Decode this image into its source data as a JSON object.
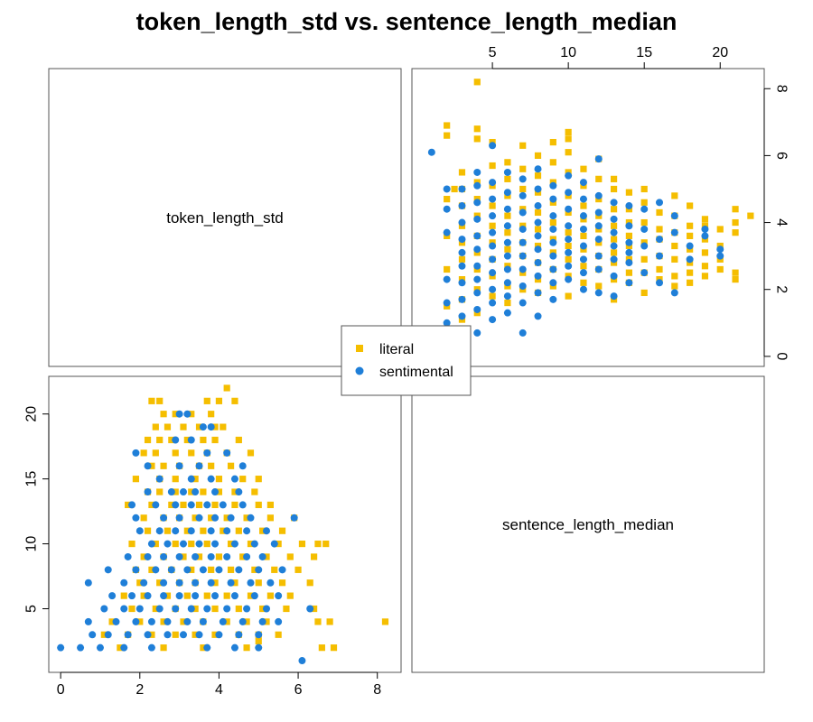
{
  "chart_data": {
    "type": "scatter",
    "title": "token_length_std vs. sentence_length_median",
    "variables": [
      "token_length_std",
      "sentence_length_median"
    ],
    "legend": {
      "position": "center",
      "entries": [
        "literal",
        "sentimental"
      ]
    },
    "series": [
      {
        "name": "literal",
        "color": "#F5BE00",
        "marker": "square",
        "points": [
          [
            2.3,
            21
          ],
          [
            2.5,
            21
          ],
          [
            3.7,
            21
          ],
          [
            4.0,
            21
          ],
          [
            4.2,
            22
          ],
          [
            4.4,
            21
          ],
          [
            2.6,
            20
          ],
          [
            2.9,
            20
          ],
          [
            3.3,
            20
          ],
          [
            3.8,
            20
          ],
          [
            2.4,
            19
          ],
          [
            2.7,
            19
          ],
          [
            3.1,
            19
          ],
          [
            3.5,
            19
          ],
          [
            3.9,
            19
          ],
          [
            4.1,
            19
          ],
          [
            2.2,
            18
          ],
          [
            2.5,
            18
          ],
          [
            2.8,
            18
          ],
          [
            3.2,
            18
          ],
          [
            3.6,
            18
          ],
          [
            3.9,
            18
          ],
          [
            4.5,
            18
          ],
          [
            2.1,
            17
          ],
          [
            2.4,
            17
          ],
          [
            2.9,
            17
          ],
          [
            3.3,
            17
          ],
          [
            3.7,
            17
          ],
          [
            4.2,
            17
          ],
          [
            4.8,
            17
          ],
          [
            2.3,
            16
          ],
          [
            2.6,
            16
          ],
          [
            3.0,
            16
          ],
          [
            3.5,
            16
          ],
          [
            3.8,
            16
          ],
          [
            4.3,
            16
          ],
          [
            1.9,
            15
          ],
          [
            2.5,
            15
          ],
          [
            2.9,
            15
          ],
          [
            3.4,
            15
          ],
          [
            4.0,
            15
          ],
          [
            4.6,
            15
          ],
          [
            5.0,
            15
          ],
          [
            2.2,
            14
          ],
          [
            2.5,
            14
          ],
          [
            2.9,
            14
          ],
          [
            3.3,
            14
          ],
          [
            3.6,
            14
          ],
          [
            4.0,
            14
          ],
          [
            4.4,
            14
          ],
          [
            4.9,
            14
          ],
          [
            1.7,
            13
          ],
          [
            2.3,
            13
          ],
          [
            2.8,
            13
          ],
          [
            3.1,
            13
          ],
          [
            3.5,
            13
          ],
          [
            3.9,
            13
          ],
          [
            4.4,
            13
          ],
          [
            5.0,
            13
          ],
          [
            5.3,
            13
          ],
          [
            2.1,
            12
          ],
          [
            2.6,
            12
          ],
          [
            3.0,
            12
          ],
          [
            3.4,
            12
          ],
          [
            3.8,
            12
          ],
          [
            4.2,
            12
          ],
          [
            4.7,
            12
          ],
          [
            5.3,
            12
          ],
          [
            5.9,
            12
          ],
          [
            2.2,
            11
          ],
          [
            2.7,
            11
          ],
          [
            3.2,
            11
          ],
          [
            3.6,
            11
          ],
          [
            4.1,
            11
          ],
          [
            4.5,
            11
          ],
          [
            5.1,
            11
          ],
          [
            5.6,
            11
          ],
          [
            1.8,
            10
          ],
          [
            2.4,
            10
          ],
          [
            2.9,
            10
          ],
          [
            3.3,
            10
          ],
          [
            3.7,
            10
          ],
          [
            4.3,
            10
          ],
          [
            4.8,
            10
          ],
          [
            5.5,
            10
          ],
          [
            6.1,
            10
          ],
          [
            6.5,
            10
          ],
          [
            6.7,
            10
          ],
          [
            2.1,
            9
          ],
          [
            2.6,
            9
          ],
          [
            3.1,
            9
          ],
          [
            3.5,
            9
          ],
          [
            4.0,
            9
          ],
          [
            4.6,
            9
          ],
          [
            5.2,
            9
          ],
          [
            5.8,
            9
          ],
          [
            6.4,
            9
          ],
          [
            1.9,
            8
          ],
          [
            2.3,
            8
          ],
          [
            2.8,
            8
          ],
          [
            3.3,
            8
          ],
          [
            3.8,
            8
          ],
          [
            4.3,
            8
          ],
          [
            4.9,
            8
          ],
          [
            5.4,
            8
          ],
          [
            6.0,
            8
          ],
          [
            2.0,
            7
          ],
          [
            2.5,
            7
          ],
          [
            3.0,
            7
          ],
          [
            3.4,
            7
          ],
          [
            3.9,
            7
          ],
          [
            4.4,
            7
          ],
          [
            5.0,
            7
          ],
          [
            5.6,
            7
          ],
          [
            6.3,
            7
          ],
          [
            1.6,
            6
          ],
          [
            2.1,
            6
          ],
          [
            2.7,
            6
          ],
          [
            3.2,
            6
          ],
          [
            3.7,
            6
          ],
          [
            4.2,
            6
          ],
          [
            4.8,
            6
          ],
          [
            5.3,
            6
          ],
          [
            5.8,
            6
          ],
          [
            1.8,
            5
          ],
          [
            2.4,
            5
          ],
          [
            2.9,
            5
          ],
          [
            3.4,
            5
          ],
          [
            3.9,
            5
          ],
          [
            4.5,
            5
          ],
          [
            5.1,
            5
          ],
          [
            5.7,
            5
          ],
          [
            6.4,
            5
          ],
          [
            1.3,
            4
          ],
          [
            2.0,
            4
          ],
          [
            2.6,
            4
          ],
          [
            3.1,
            4
          ],
          [
            3.6,
            4
          ],
          [
            4.2,
            4
          ],
          [
            4.7,
            4
          ],
          [
            5.2,
            4
          ],
          [
            6.5,
            4
          ],
          [
            6.8,
            4
          ],
          [
            8.2,
            4
          ],
          [
            1.1,
            3
          ],
          [
            1.7,
            3
          ],
          [
            2.3,
            3
          ],
          [
            2.9,
            3
          ],
          [
            3.4,
            3
          ],
          [
            3.9,
            3
          ],
          [
            4.5,
            3
          ],
          [
            5.0,
            3
          ],
          [
            5.5,
            3
          ],
          [
            1.5,
            2
          ],
          [
            2.6,
            2
          ],
          [
            3.6,
            2
          ],
          [
            4.7,
            2
          ],
          [
            5.0,
            2.5
          ],
          [
            6.6,
            2
          ],
          [
            6.9,
            2
          ]
        ]
      },
      {
        "name": "sentimental",
        "color": "#1F7FD8",
        "marker": "circle",
        "points": [
          [
            3.0,
            20
          ],
          [
            3.2,
            20
          ],
          [
            3.6,
            19
          ],
          [
            3.8,
            19
          ],
          [
            2.9,
            18
          ],
          [
            3.3,
            18
          ],
          [
            3.7,
            17
          ],
          [
            4.2,
            17
          ],
          [
            1.9,
            17
          ],
          [
            2.2,
            16
          ],
          [
            3.0,
            16
          ],
          [
            3.5,
            16
          ],
          [
            4.6,
            16
          ],
          [
            2.5,
            15
          ],
          [
            3.3,
            15
          ],
          [
            3.8,
            15
          ],
          [
            4.4,
            15
          ],
          [
            2.2,
            14
          ],
          [
            2.8,
            14
          ],
          [
            3.1,
            14
          ],
          [
            3.4,
            14
          ],
          [
            3.9,
            14
          ],
          [
            4.5,
            14
          ],
          [
            1.8,
            13
          ],
          [
            2.4,
            13
          ],
          [
            2.9,
            13
          ],
          [
            3.3,
            13
          ],
          [
            3.7,
            13
          ],
          [
            4.1,
            13
          ],
          [
            4.6,
            13
          ],
          [
            1.9,
            12
          ],
          [
            2.6,
            12
          ],
          [
            3.0,
            12
          ],
          [
            3.5,
            12
          ],
          [
            3.9,
            12
          ],
          [
            4.3,
            12
          ],
          [
            4.8,
            12
          ],
          [
            5.9,
            12
          ],
          [
            2.0,
            11
          ],
          [
            2.5,
            11
          ],
          [
            2.9,
            11
          ],
          [
            3.3,
            11
          ],
          [
            3.8,
            11
          ],
          [
            4.2,
            11
          ],
          [
            4.7,
            11
          ],
          [
            5.2,
            11
          ],
          [
            2.3,
            10
          ],
          [
            2.7,
            10
          ],
          [
            3.1,
            10
          ],
          [
            3.5,
            10
          ],
          [
            3.9,
            10
          ],
          [
            4.4,
            10
          ],
          [
            4.9,
            10
          ],
          [
            5.4,
            10
          ],
          [
            1.7,
            9
          ],
          [
            2.2,
            9
          ],
          [
            2.6,
            9
          ],
          [
            3.0,
            9
          ],
          [
            3.4,
            9
          ],
          [
            3.8,
            9
          ],
          [
            4.2,
            9
          ],
          [
            4.7,
            9
          ],
          [
            5.1,
            9
          ],
          [
            1.2,
            8
          ],
          [
            1.9,
            8
          ],
          [
            2.4,
            8
          ],
          [
            2.8,
            8
          ],
          [
            3.2,
            8
          ],
          [
            3.6,
            8
          ],
          [
            4.0,
            8
          ],
          [
            4.5,
            8
          ],
          [
            5.0,
            8
          ],
          [
            5.6,
            8
          ],
          [
            0.7,
            7
          ],
          [
            1.6,
            7
          ],
          [
            2.1,
            7
          ],
          [
            2.6,
            7
          ],
          [
            3.0,
            7
          ],
          [
            3.4,
            7
          ],
          [
            3.8,
            7
          ],
          [
            4.3,
            7
          ],
          [
            4.8,
            7
          ],
          [
            5.3,
            7
          ],
          [
            1.3,
            6
          ],
          [
            1.8,
            6
          ],
          [
            2.2,
            6
          ],
          [
            2.6,
            6
          ],
          [
            3.0,
            6
          ],
          [
            3.4,
            6
          ],
          [
            3.9,
            6
          ],
          [
            4.4,
            6
          ],
          [
            4.9,
            6
          ],
          [
            5.5,
            6
          ],
          [
            1.1,
            5
          ],
          [
            1.6,
            5
          ],
          [
            2.0,
            5
          ],
          [
            2.5,
            5
          ],
          [
            2.9,
            5
          ],
          [
            3.3,
            5
          ],
          [
            3.7,
            5
          ],
          [
            4.2,
            5
          ],
          [
            4.7,
            5
          ],
          [
            5.2,
            5
          ],
          [
            6.3,
            5
          ],
          [
            0.7,
            4
          ],
          [
            1.4,
            4
          ],
          [
            1.9,
            4
          ],
          [
            2.3,
            4
          ],
          [
            2.7,
            4
          ],
          [
            3.2,
            4
          ],
          [
            3.6,
            4
          ],
          [
            4.1,
            4
          ],
          [
            4.6,
            4
          ],
          [
            5.1,
            4
          ],
          [
            5.5,
            4
          ],
          [
            0.8,
            3
          ],
          [
            1.2,
            3
          ],
          [
            1.7,
            3
          ],
          [
            2.2,
            3
          ],
          [
            2.7,
            3
          ],
          [
            3.1,
            3
          ],
          [
            3.5,
            3
          ],
          [
            4.0,
            3
          ],
          [
            4.5,
            3
          ],
          [
            5.0,
            3
          ],
          [
            0.0,
            2
          ],
          [
            0.5,
            2
          ],
          [
            1.0,
            2
          ],
          [
            1.6,
            2
          ],
          [
            2.3,
            2
          ],
          [
            3.7,
            2
          ],
          [
            4.4,
            2
          ],
          [
            5.0,
            2
          ],
          [
            6.1,
            1
          ]
        ]
      }
    ],
    "panels": {
      "upper_right": {
        "x_variable": "sentence_length_median",
        "y_variable": "token_length_std",
        "x_ticks": [
          5,
          10,
          15,
          20
        ],
        "y_ticks": [
          0,
          2,
          4,
          6,
          8
        ],
        "x_axis_side": "top",
        "y_axis_side": "right",
        "xlim": [
          -0.3,
          22.9
        ],
        "ylim": [
          -0.3,
          8.6
        ]
      },
      "lower_left": {
        "x_variable": "token_length_std",
        "y_variable": "sentence_length_median",
        "x_ticks": [
          0,
          2,
          4,
          6,
          8
        ],
        "y_ticks": [
          5,
          10,
          15,
          20
        ],
        "x_axis_side": "bottom",
        "y_axis_side": "left",
        "xlim": [
          -0.3,
          8.6
        ],
        "ylim": [
          0.1,
          22.9
        ]
      }
    },
    "diagonal_labels": [
      "token_length_std",
      "sentence_length_median"
    ],
    "grid": false
  }
}
